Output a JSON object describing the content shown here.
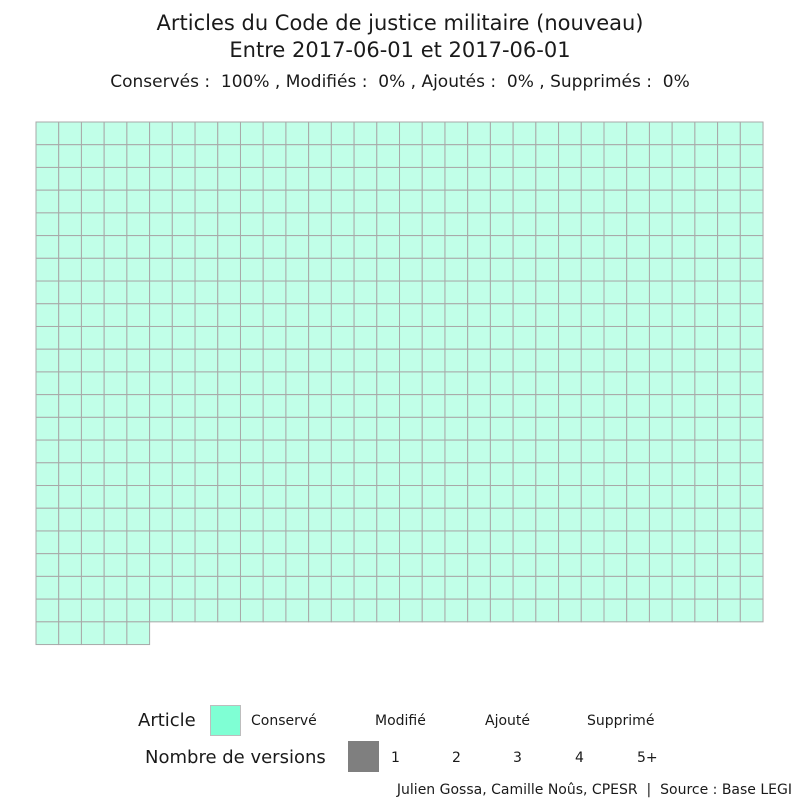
{
  "chart_data": {
    "type": "waffle",
    "title": "Articles du Code de justice militaire (nouveau)",
    "subtitle": "Entre 2017-06-01 et 2017-06-01",
    "summary": "Conservés :  100% , Modifiés :  0% , Ajoutés :  0% , Supprimés :  0%",
    "grid": {
      "columns": 32
    },
    "categories": [
      "Conservé",
      "Modifié",
      "Ajouté",
      "Supprimé"
    ],
    "values": [
      709,
      0,
      0,
      0
    ],
    "colors": {
      "Conservé": "#c1ffe8",
      "cell_border": "#a8a8a8"
    },
    "legend": {
      "article_title": "Article",
      "article_items": [
        "Conservé",
        "Modifié",
        "Ajouté",
        "Supprimé"
      ],
      "article_key_color": "#7fffd4",
      "versions_title": "Nombre de versions",
      "versions_items": [
        "1",
        "2",
        "3",
        "4",
        "5+"
      ],
      "versions_key_color": "#7f7f7f"
    },
    "caption": "Julien Gossa, Camille Noûs, CPESR  |  Source : Base LEGI"
  }
}
